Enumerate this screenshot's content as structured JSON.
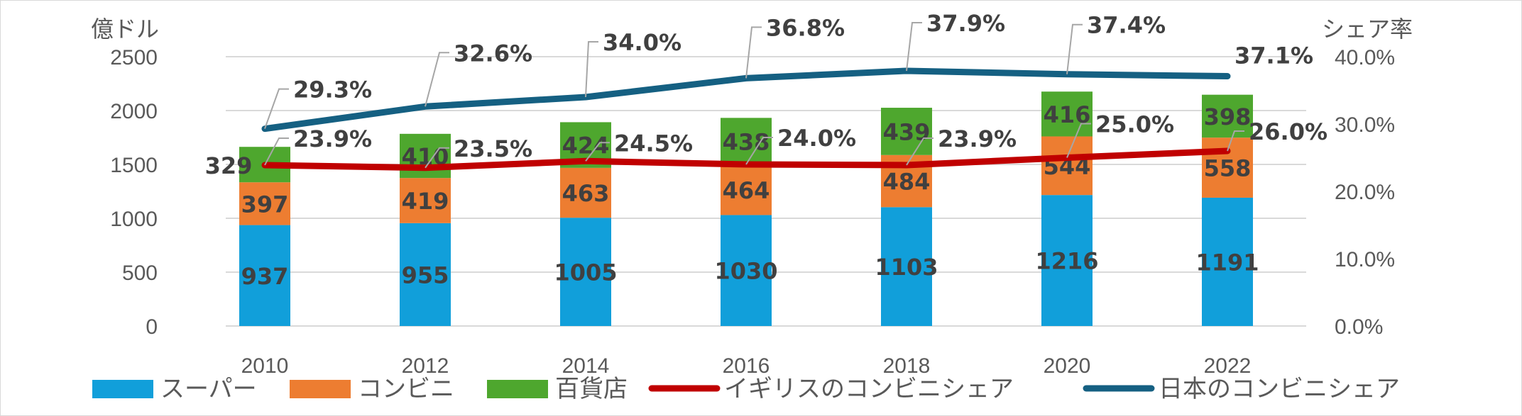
{
  "chart_data": {
    "type": "bar",
    "stacked": true,
    "categories": [
      "2010",
      "2012",
      "2014",
      "2016",
      "2018",
      "2020",
      "2022"
    ],
    "series": [
      {
        "name": "スーパー",
        "kind": "bar",
        "axis": "left",
        "color": "#119fda",
        "values": [
          937,
          955,
          1005,
          1030,
          1103,
          1216,
          1191
        ]
      },
      {
        "name": "コンビニ",
        "kind": "bar",
        "axis": "left",
        "color": "#ed7d31",
        "values": [
          397,
          419,
          463,
          464,
          484,
          544,
          558
        ]
      },
      {
        "name": "百貨店",
        "kind": "bar",
        "axis": "left",
        "color": "#4ea72e",
        "values": [
          329,
          410,
          424,
          438,
          439,
          416,
          398
        ]
      },
      {
        "name": "イギリスのコンビニシェア",
        "kind": "line",
        "axis": "right",
        "color": "#c00000",
        "values": [
          23.9,
          23.5,
          24.5,
          24.0,
          23.9,
          25.0,
          26.0
        ],
        "labels": [
          "23.9%",
          "23.5%",
          "24.5%",
          "24.0%",
          "23.9%",
          "25.0%",
          "26.0%"
        ]
      },
      {
        "name": "日本のコンビニシェア",
        "kind": "line",
        "axis": "right",
        "color": "#156082",
        "values": [
          29.3,
          32.6,
          34.0,
          36.8,
          37.9,
          37.4,
          37.1
        ],
        "labels": [
          "29.3%",
          "32.6%",
          "34.0%",
          "36.8%",
          "37.9%",
          "37.4%",
          "37.1%"
        ]
      }
    ],
    "ylabel": "億ドル",
    "ylabel_right": "シェア率",
    "ylim": [
      0,
      2500
    ],
    "y_ticks": [
      "0",
      "500",
      "1000",
      "1500",
      "2000",
      "2500"
    ],
    "ylim_right": [
      0,
      40
    ],
    "y_ticks_right": [
      "0.0%",
      "10.0%",
      "20.0%",
      "30.0%",
      "40.0%"
    ],
    "grid": true,
    "legend": "bottom"
  }
}
